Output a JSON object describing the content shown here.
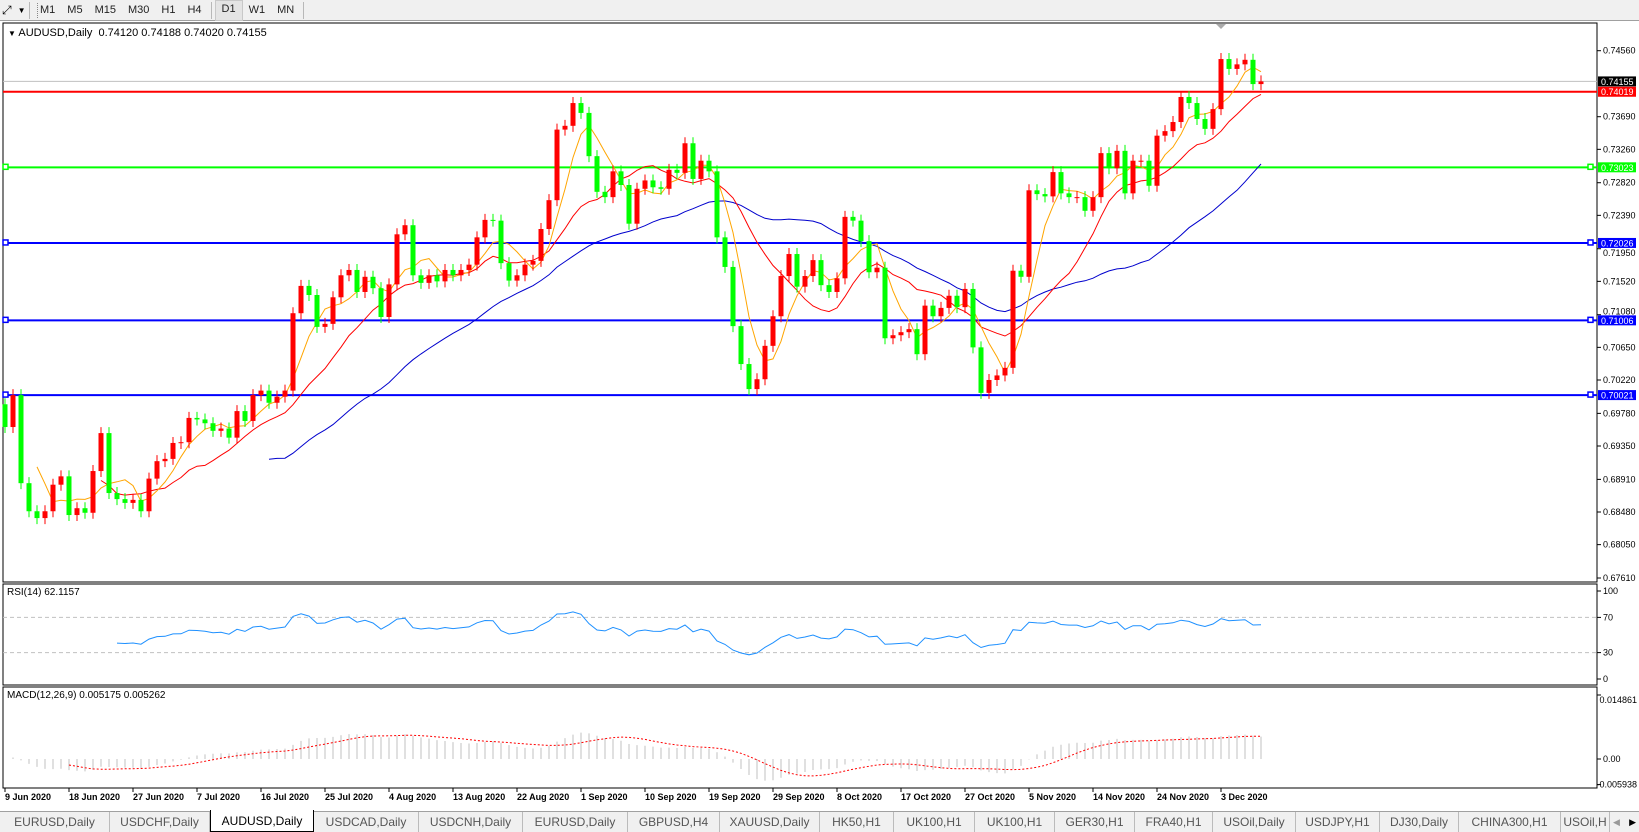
{
  "toolbar": {
    "timeframes": [
      "M1",
      "M5",
      "M15",
      "M30",
      "H1",
      "H4",
      "D1",
      "W1",
      "MN"
    ],
    "active_timeframe": "D1"
  },
  "chart": {
    "symbol_label": "AUDUSD,Daily",
    "ohlc_label": "0.74120 0.74188 0.74020 0.74155",
    "current_price": "0.74155",
    "price_ticks": [
      "0.74560",
      "0.73690",
      "0.73260",
      "0.72820",
      "0.72390",
      "0.71950",
      "0.71520",
      "0.71080",
      "0.70650",
      "0.70220",
      "0.69780",
      "0.69350",
      "0.68910",
      "0.68480",
      "0.68050",
      "0.67610"
    ],
    "levels": [
      {
        "price": 0.74019,
        "label": "0.74019",
        "color": "#ff0000"
      },
      {
        "price": 0.73023,
        "label": "0.73023",
        "color": "#00ff00"
      },
      {
        "price": 0.72026,
        "label": "0.72026",
        "color": "#0000ff"
      },
      {
        "price": 0.71006,
        "label": "0.71006",
        "color": "#0000ff"
      },
      {
        "price": 0.70021,
        "label": "0.70021",
        "color": "#0000ff"
      }
    ],
    "date_labels": [
      "9 Jun 2020",
      "18 Jun 2020",
      "27 Jun 2020",
      "7 Jul 2020",
      "16 Jul 2020",
      "25 Jul 2020",
      "4 Aug 2020",
      "13 Aug 2020",
      "22 Aug 2020",
      "1 Sep 2020",
      "10 Sep 2020",
      "19 Sep 2020",
      "29 Sep 2020",
      "8 Oct 2020",
      "17 Oct 2020",
      "27 Oct 2020",
      "5 Nov 2020",
      "14 Nov 2020",
      "24 Nov 2020",
      "3 Dec 2020"
    ],
    "colors": {
      "bull": "#ff0000",
      "bear": "#00ff00",
      "ma_fast": "#ffa500",
      "ma_mid": "#ff0000",
      "ma_slow": "#0000cd",
      "rsi": "#1e90ff",
      "macd_hist": "#c0c0c0",
      "macd_signal": "#ff0000"
    }
  },
  "chart_data": {
    "type": "candlestick",
    "first_open": 0.699,
    "closes": [
      0.696,
      0.7002,
      0.6886,
      0.6849,
      0.684,
      0.6849,
      0.6884,
      0.6895,
      0.6844,
      0.6853,
      0.6847,
      0.6902,
      0.6952,
      0.6873,
      0.6865,
      0.686,
      0.6864,
      0.6849,
      0.6892,
      0.6915,
      0.6918,
      0.6939,
      0.694,
      0.6972,
      0.697,
      0.6965,
      0.6955,
      0.6958,
      0.6946,
      0.6981,
      0.6968,
      0.7002,
      0.7008,
      0.6992,
      0.7,
      0.7008,
      0.711,
      0.7146,
      0.7134,
      0.7092,
      0.7096,
      0.7131,
      0.716,
      0.7167,
      0.7138,
      0.7158,
      0.7143,
      0.7105,
      0.7148,
      0.7214,
      0.7226,
      0.716,
      0.715,
      0.716,
      0.7152,
      0.7167,
      0.716,
      0.7167,
      0.7174,
      0.721,
      0.7233,
      0.7232,
      0.7176,
      0.7153,
      0.716,
      0.7174,
      0.7179,
      0.7221,
      0.7259,
      0.7352,
      0.7357,
      0.7387,
      0.7374,
      0.7317,
      0.727,
      0.7263,
      0.7297,
      0.7279,
      0.7228,
      0.7274,
      0.7285,
      0.7276,
      0.7274,
      0.7299,
      0.7295,
      0.7334,
      0.7287,
      0.7311,
      0.7297,
      0.721,
      0.7171,
      0.7093,
      0.7043,
      0.701,
      0.7023,
      0.7067,
      0.7106,
      0.7159,
      0.7188,
      0.7145,
      0.7159,
      0.718,
      0.7147,
      0.7138,
      0.7156,
      0.7237,
      0.7232,
      0.7205,
      0.7164,
      0.717,
      0.7077,
      0.7081,
      0.7085,
      0.7089,
      0.7056,
      0.712,
      0.7106,
      0.7117,
      0.7133,
      0.7118,
      0.7142,
      0.7065,
      0.7005,
      0.7022,
      0.7028,
      0.7038,
      0.7166,
      0.7158,
      0.7272,
      0.7267,
      0.7264,
      0.7296,
      0.7268,
      0.7263,
      0.7263,
      0.7245,
      0.7263,
      0.7321,
      0.7301,
      0.7324,
      0.7268,
      0.7311,
      0.7311,
      0.7278,
      0.7344,
      0.735,
      0.7362,
      0.7395,
      0.7387,
      0.7366,
      0.7353,
      0.7379,
      0.7445,
      0.7432,
      0.7438,
      0.7444,
      0.7412,
      0.74155
    ],
    "ylim": [
      0.6761,
      0.7475
    ]
  },
  "rsi": {
    "label": "RSI(14) 62.1157",
    "ticks": [
      "100",
      "70",
      "30",
      "0"
    ],
    "levels": [
      70,
      30
    ]
  },
  "macd": {
    "label": "MACD(12,26,9) 0.005175 0.005262",
    "ticks": [
      "0.014861",
      "0.00",
      "-0.005938"
    ]
  },
  "tabs": [
    "EURUSD,Daily",
    "USDCHF,Daily",
    "AUDUSD,Daily",
    "USDCAD,Daily",
    "USDCNH,Daily",
    "EURUSD,Daily",
    "GBPUSD,H4",
    "XAUUSD,Daily",
    "HK50,H1",
    "UK100,H1",
    "UK100,H1",
    "GER30,H1",
    "FRA40,H1",
    "USOil,Daily",
    "USDJPY,H1",
    "DJ30,Daily",
    "CHINA300,H1",
    "USOil,H"
  ],
  "active_tab": "AUDUSD,Daily"
}
